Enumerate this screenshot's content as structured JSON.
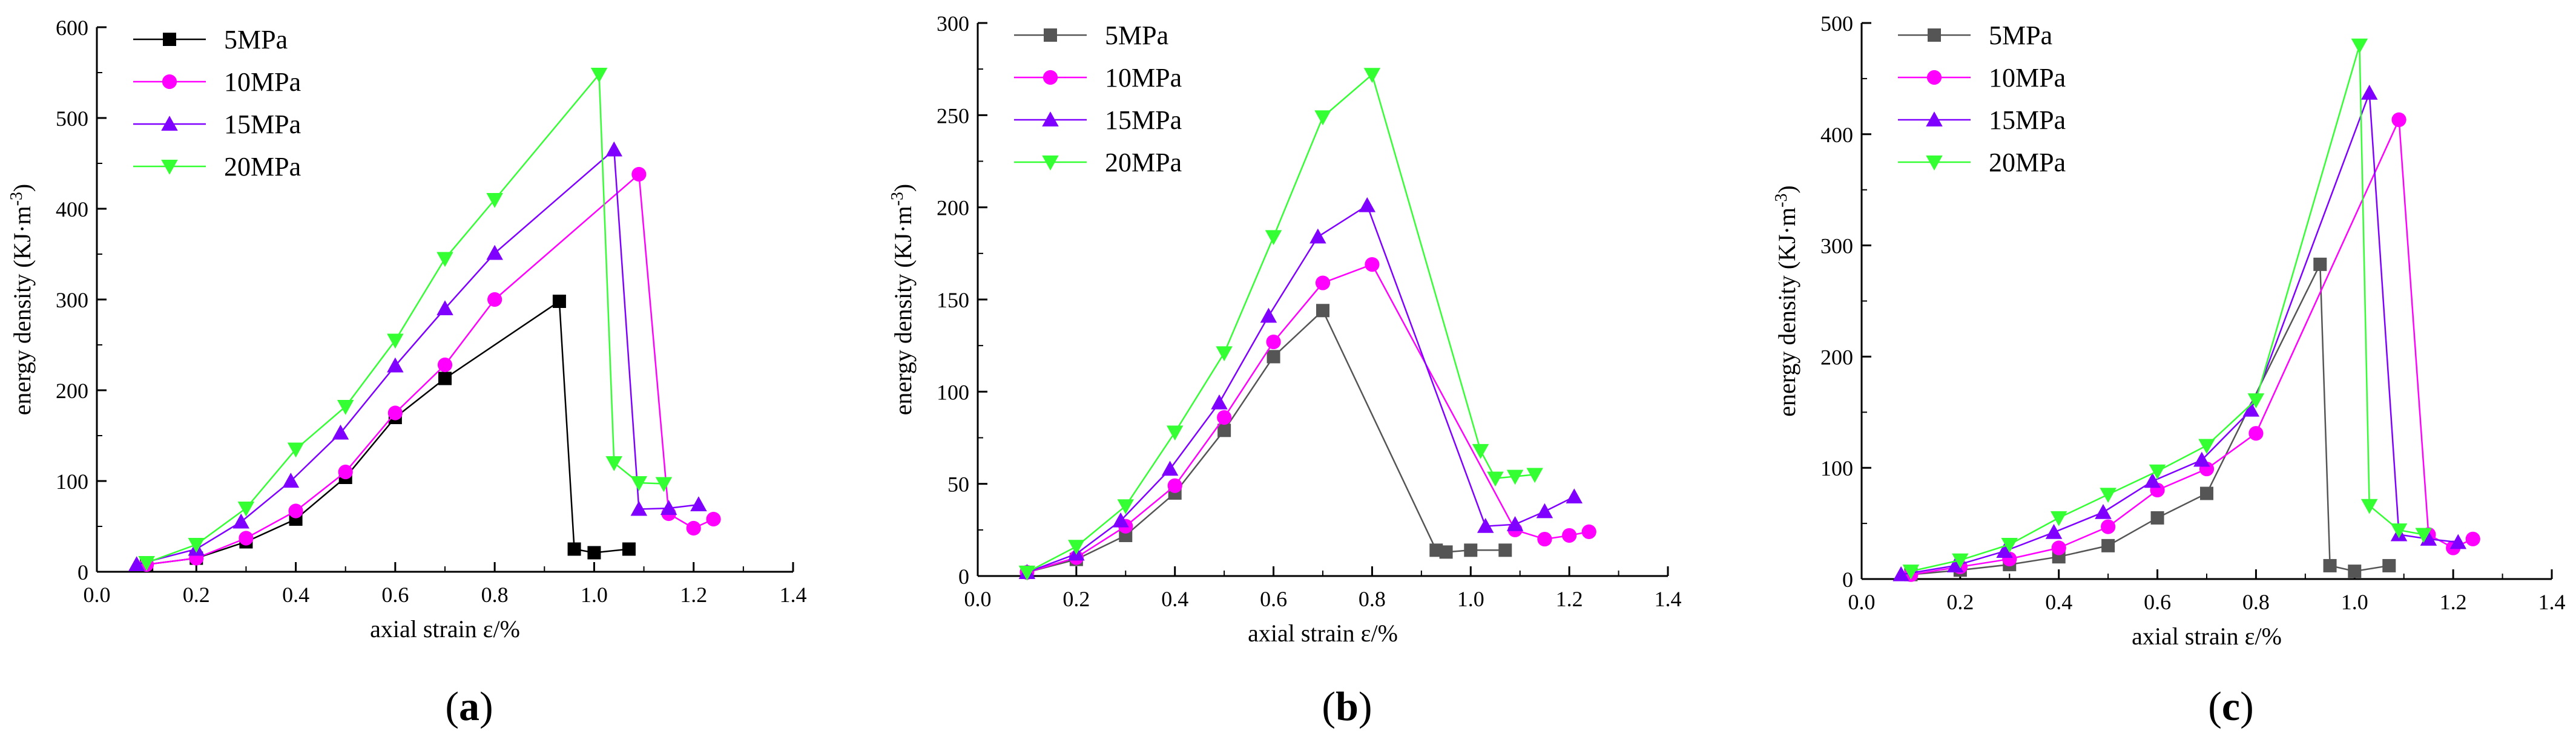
{
  "chart_data": [
    {
      "type": "line",
      "panel_label": "(a)",
      "title": "",
      "xlabel": "axial strain  ε/%",
      "ylabel": "energy density  (KJ·m⁻³)",
      "xlim": [
        0.0,
        1.4
      ],
      "ylim": [
        0,
        600
      ],
      "xticks": [
        0.0,
        0.2,
        0.4,
        0.6,
        0.8,
        1.0,
        1.2,
        1.4
      ],
      "yticks": [
        0,
        100,
        200,
        300,
        400,
        500,
        600
      ],
      "x_tick_labels": [
        "0.0",
        "0.2",
        "0.4",
        "0.6",
        "0.8",
        "1.0",
        "1.2",
        "1.4"
      ],
      "y_tick_labels": [
        "0",
        "100",
        "200",
        "300",
        "400",
        "500",
        "600"
      ],
      "legend_position": "top-left",
      "series": [
        {
          "name": "5MPa",
          "color": "#000000",
          "marker": "square",
          "x": [
            0.1,
            0.2,
            0.3,
            0.4,
            0.5,
            0.6,
            0.7,
            0.93,
            0.96,
            1.0,
            1.07
          ],
          "y": [
            8,
            15,
            33,
            58,
            104,
            170,
            213,
            298,
            25,
            21,
            25
          ]
        },
        {
          "name": "10MPa",
          "color": "#ff00ff",
          "marker": "circle",
          "x": [
            0.1,
            0.2,
            0.3,
            0.4,
            0.5,
            0.6,
            0.7,
            0.8,
            1.09,
            1.15,
            1.2,
            1.24
          ],
          "y": [
            8,
            15,
            37,
            67,
            110,
            175,
            228,
            300,
            438,
            64,
            48,
            58
          ]
        },
        {
          "name": "15MPa",
          "color": "#8000ff",
          "marker": "triangle-up",
          "x": [
            0.08,
            0.2,
            0.29,
            0.39,
            0.49,
            0.6,
            0.7,
            0.8,
            1.04,
            1.09,
            1.15,
            1.21
          ],
          "y": [
            8,
            25,
            55,
            100,
            153,
            227,
            290,
            351,
            465,
            69,
            70,
            74
          ]
        },
        {
          "name": "20MPa",
          "color": "#33ff33",
          "marker": "triangle-down",
          "x": [
            0.1,
            0.2,
            0.3,
            0.4,
            0.5,
            0.6,
            0.7,
            0.8,
            1.01,
            1.04,
            1.09,
            1.14
          ],
          "y": [
            10,
            30,
            70,
            135,
            182,
            255,
            345,
            410,
            548,
            120,
            98,
            97
          ]
        }
      ]
    },
    {
      "type": "line",
      "panel_label": "(b)",
      "title": "",
      "xlabel": "axial strain  ε/%",
      "ylabel": "energy density  (KJ·m⁻³)",
      "xlim": [
        0.0,
        1.4
      ],
      "ylim": [
        0,
        300
      ],
      "xticks": [
        0.0,
        0.2,
        0.4,
        0.6,
        0.8,
        1.0,
        1.2,
        1.4
      ],
      "yticks": [
        0,
        50,
        100,
        150,
        200,
        250,
        300
      ],
      "x_tick_labels": [
        "0.0",
        "0.2",
        "0.4",
        "0.6",
        "0.8",
        "1.0",
        "1.2",
        "1.4"
      ],
      "y_tick_labels": [
        "0",
        "50",
        "100",
        "150",
        "200",
        "250",
        "300"
      ],
      "legend_position": "top-left",
      "series": [
        {
          "name": "5MPa",
          "color": "#555555",
          "marker": "square",
          "x": [
            0.1,
            0.2,
            0.3,
            0.4,
            0.5,
            0.6,
            0.7,
            0.93,
            0.95,
            1.0,
            1.07
          ],
          "y": [
            2,
            9,
            22,
            45,
            79,
            119,
            144,
            14,
            13,
            14,
            14
          ]
        },
        {
          "name": "10MPa",
          "color": "#ff00ff",
          "marker": "circle",
          "x": [
            0.1,
            0.2,
            0.3,
            0.4,
            0.5,
            0.6,
            0.7,
            0.8,
            1.09,
            1.15,
            1.2,
            1.24
          ],
          "y": [
            2,
            10,
            27,
            49,
            86,
            127,
            159,
            169,
            25,
            20,
            22,
            24
          ]
        },
        {
          "name": "15MPa",
          "color": "#8000ff",
          "marker": "triangle-up",
          "x": [
            0.1,
            0.2,
            0.29,
            0.39,
            0.49,
            0.59,
            0.69,
            0.79,
            1.03,
            1.09,
            1.15,
            1.21
          ],
          "y": [
            2,
            12,
            30,
            58,
            94,
            141,
            184,
            201,
            27,
            28,
            35,
            43
          ]
        },
        {
          "name": "20MPa",
          "color": "#33ff33",
          "marker": "triangle-down",
          "x": [
            0.1,
            0.2,
            0.3,
            0.4,
            0.5,
            0.6,
            0.7,
            0.8,
            1.02,
            1.05,
            1.09,
            1.13
          ],
          "y": [
            2,
            16,
            38,
            78,
            121,
            184,
            249,
            272,
            68,
            53,
            54,
            55
          ]
        }
      ]
    },
    {
      "type": "line",
      "panel_label": "(c)",
      "title": "",
      "xlabel": "axial strain  ε/%",
      "ylabel": "energy density  (KJ·m⁻³)",
      "xlim": [
        0.0,
        1.4
      ],
      "ylim": [
        0,
        500
      ],
      "xticks": [
        0.0,
        0.2,
        0.4,
        0.6,
        0.8,
        1.0,
        1.2,
        1.4
      ],
      "yticks": [
        0,
        100,
        200,
        300,
        400,
        500
      ],
      "x_tick_labels": [
        "0.0",
        "0.2",
        "0.4",
        "0.6",
        "0.8",
        "1.0",
        "1.2",
        "1.4"
      ],
      "y_tick_labels": [
        "0",
        "100",
        "200",
        "300",
        "400",
        "500"
      ],
      "legend_position": "top-left",
      "series": [
        {
          "name": "5MPa",
          "color": "#555555",
          "marker": "square",
          "x": [
            0.1,
            0.2,
            0.3,
            0.4,
            0.5,
            0.6,
            0.7,
            0.93,
            0.95,
            1.0,
            1.07
          ],
          "y": [
            4,
            8,
            13,
            20,
            30,
            55,
            77,
            283,
            12,
            7,
            12
          ]
        },
        {
          "name": "10MPa",
          "color": "#ff00ff",
          "marker": "circle",
          "x": [
            0.1,
            0.2,
            0.3,
            0.4,
            0.5,
            0.6,
            0.7,
            0.8,
            1.09,
            1.15,
            1.2,
            1.24
          ],
          "y": [
            4,
            11,
            18,
            28,
            47,
            80,
            99,
            131,
            413,
            40,
            28,
            36
          ]
        },
        {
          "name": "15MPa",
          "color": "#8000ff",
          "marker": "triangle-up",
          "x": [
            0.08,
            0.19,
            0.29,
            0.39,
            0.49,
            0.59,
            0.69,
            0.79,
            1.03,
            1.09,
            1.15,
            1.21
          ],
          "y": [
            4,
            12,
            25,
            42,
            60,
            88,
            107,
            152,
            437,
            40,
            36,
            33
          ]
        },
        {
          "name": "20MPa",
          "color": "#33ff33",
          "marker": "triangle-down",
          "x": [
            0.1,
            0.2,
            0.3,
            0.4,
            0.5,
            0.6,
            0.7,
            0.8,
            1.01,
            1.03,
            1.09,
            1.14
          ],
          "y": [
            7,
            17,
            31,
            55,
            76,
            97,
            120,
            161,
            480,
            66,
            44,
            40
          ]
        }
      ]
    }
  ]
}
